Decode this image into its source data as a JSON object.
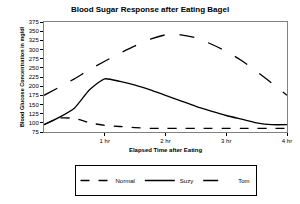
{
  "chart_data": {
    "type": "line",
    "title": "Blood Sugar Response after Eating Bagel",
    "x_label": "Elapsed Time after Eating",
    "y_label": "Blood Glucose Concentration in mg/dl",
    "x": [
      0,
      0.25,
      0.5,
      0.75,
      1,
      1.25,
      1.5,
      1.75,
      2,
      2.25,
      2.5,
      2.75,
      3,
      3.25,
      3.5,
      3.75,
      4
    ],
    "series": [
      {
        "name": "Normal",
        "color": "#000000",
        "line_style": "dash",
        "values": [
          95,
          113,
          112,
          100,
          93,
          90,
          87,
          85,
          85,
          85,
          85,
          85,
          85,
          85,
          85,
          85,
          85
        ]
      },
      {
        "name": "Suzy",
        "color": "#000000",
        "line_style": "solid",
        "values": [
          95,
          115,
          140,
          190,
          220,
          213,
          203,
          190,
          175,
          160,
          145,
          132,
          120,
          110,
          100,
          95,
          95
        ]
      },
      {
        "name": "Tom",
        "color": "#000000",
        "line_style": "longdash",
        "values": [
          175,
          197,
          220,
          245,
          268,
          290,
          310,
          328,
          340,
          340,
          332,
          315,
          295,
          270,
          240,
          208,
          175
        ]
      }
    ],
    "xlim": [
      0,
      4
    ],
    "xticks": [
      {
        "value": 1,
        "label": "1 hr"
      },
      {
        "value": 2,
        "label": "2 hr"
      },
      {
        "value": 3,
        "label": "3 hr"
      },
      {
        "value": 4,
        "label": "4 hr"
      }
    ],
    "ylim": [
      75,
      375
    ],
    "yticks": [
      75,
      100,
      125,
      150,
      175,
      200,
      225,
      250,
      275,
      300,
      325,
      350,
      375
    ],
    "grid": false,
    "legend": "bottom"
  }
}
